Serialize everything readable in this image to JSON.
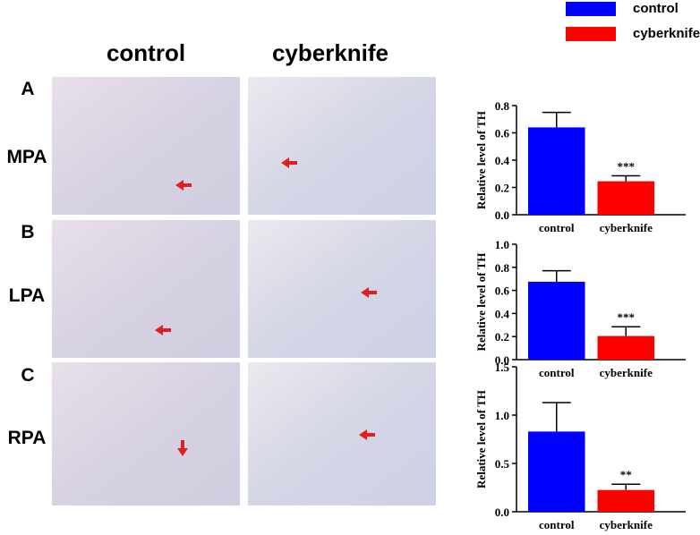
{
  "figure": {
    "columns": [
      "control",
      "cyberknife"
    ],
    "rows": [
      {
        "letter": "A",
        "label": "MPA"
      },
      {
        "letter": "B",
        "label": "LPA"
      },
      {
        "letter": "C",
        "label": "RPA"
      }
    ],
    "legend": [
      {
        "name": "control",
        "color": "#0000ff"
      },
      {
        "name": "cyberknife",
        "color": "#ff0000"
      }
    ]
  },
  "chart_data": [
    {
      "type": "bar",
      "y_label": "Relative level of TH",
      "categories": [
        "control",
        "cyberknife"
      ],
      "values": [
        0.64,
        0.245
      ],
      "errors": [
        0.11,
        0.04
      ],
      "colors": [
        "#0000ff",
        "#ff0000"
      ],
      "annotation": "***",
      "ylim": [
        0,
        0.8
      ],
      "yticks": [
        {
          "value": 0,
          "label": "0.0"
        },
        0.2,
        0.4,
        0.6,
        0.8
      ]
    },
    {
      "type": "bar",
      "y_label": "Relative level of TH",
      "categories": [
        "control",
        "cyberknife"
      ],
      "values": [
        0.675,
        0.205
      ],
      "errors": [
        0.095,
        0.08
      ],
      "colors": [
        "#0000ff",
        "#ff0000"
      ],
      "annotation": "***",
      "ylim": [
        0,
        1.0
      ],
      "yticks": [
        {
          "value": 0,
          "label": "0.0"
        },
        0.2,
        0.4,
        0.6,
        0.8,
        {
          "value": 1.0,
          "label": "1.0"
        }
      ]
    },
    {
      "type": "bar",
      "y_label": "Relative level of TH",
      "categories": [
        "control",
        "cyberknife"
      ],
      "values": [
        0.83,
        0.225
      ],
      "errors": [
        0.3,
        0.06
      ],
      "colors": [
        "#0000ff",
        "#ff0000"
      ],
      "annotation": "**",
      "ylim": [
        0,
        1.5
      ],
      "yticks": [
        {
          "value": 0,
          "label": "0.0"
        },
        0.5,
        {
          "value": 1.0,
          "label": "1.0"
        },
        1.5
      ]
    }
  ]
}
